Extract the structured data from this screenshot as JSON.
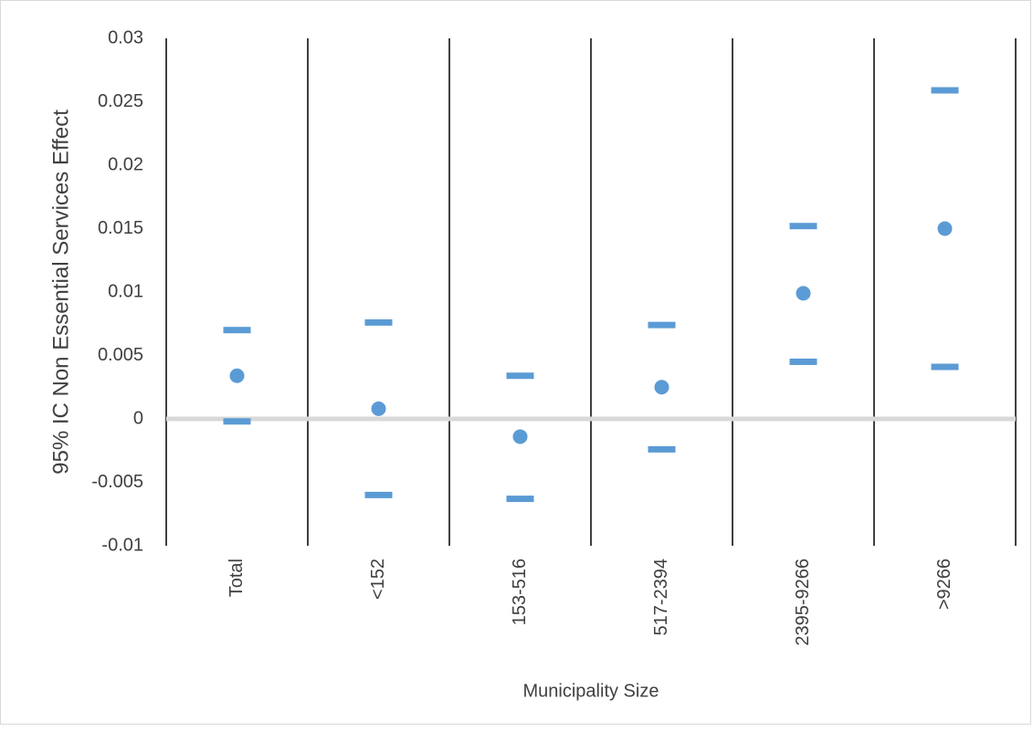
{
  "chart_data": {
    "type": "interval",
    "y_axis_label": "95% IC Non Essential Services Effect",
    "x_axis_label": "Municipality Size",
    "categories": [
      "Total",
      "<152",
      "153-516",
      "517-2394",
      "2395-9266",
      ">9266"
    ],
    "series": [
      {
        "marker": "dash",
        "color": "#5b9bd5",
        "values": [
          0.007,
          0.0076,
          0.0034,
          0.0074,
          0.0152,
          0.0259
        ]
      },
      {
        "marker": "circle",
        "color": "#5b9bd5",
        "values": [
          0.0034,
          0.0008,
          -0.0014,
          0.0025,
          0.0099,
          0.015
        ]
      },
      {
        "marker": "dash",
        "color": "#5b9bd5",
        "values": [
          -0.0002,
          -0.006,
          -0.0063,
          -0.0024,
          0.0045,
          0.0041
        ]
      }
    ],
    "ylim": [
      -0.01,
      0.03
    ],
    "yticks": [
      -0.01,
      -0.005,
      0,
      0.005,
      0.01,
      0.015,
      0.02,
      0.025,
      0.03
    ],
    "zero_line_color": "#d9d9d9"
  }
}
